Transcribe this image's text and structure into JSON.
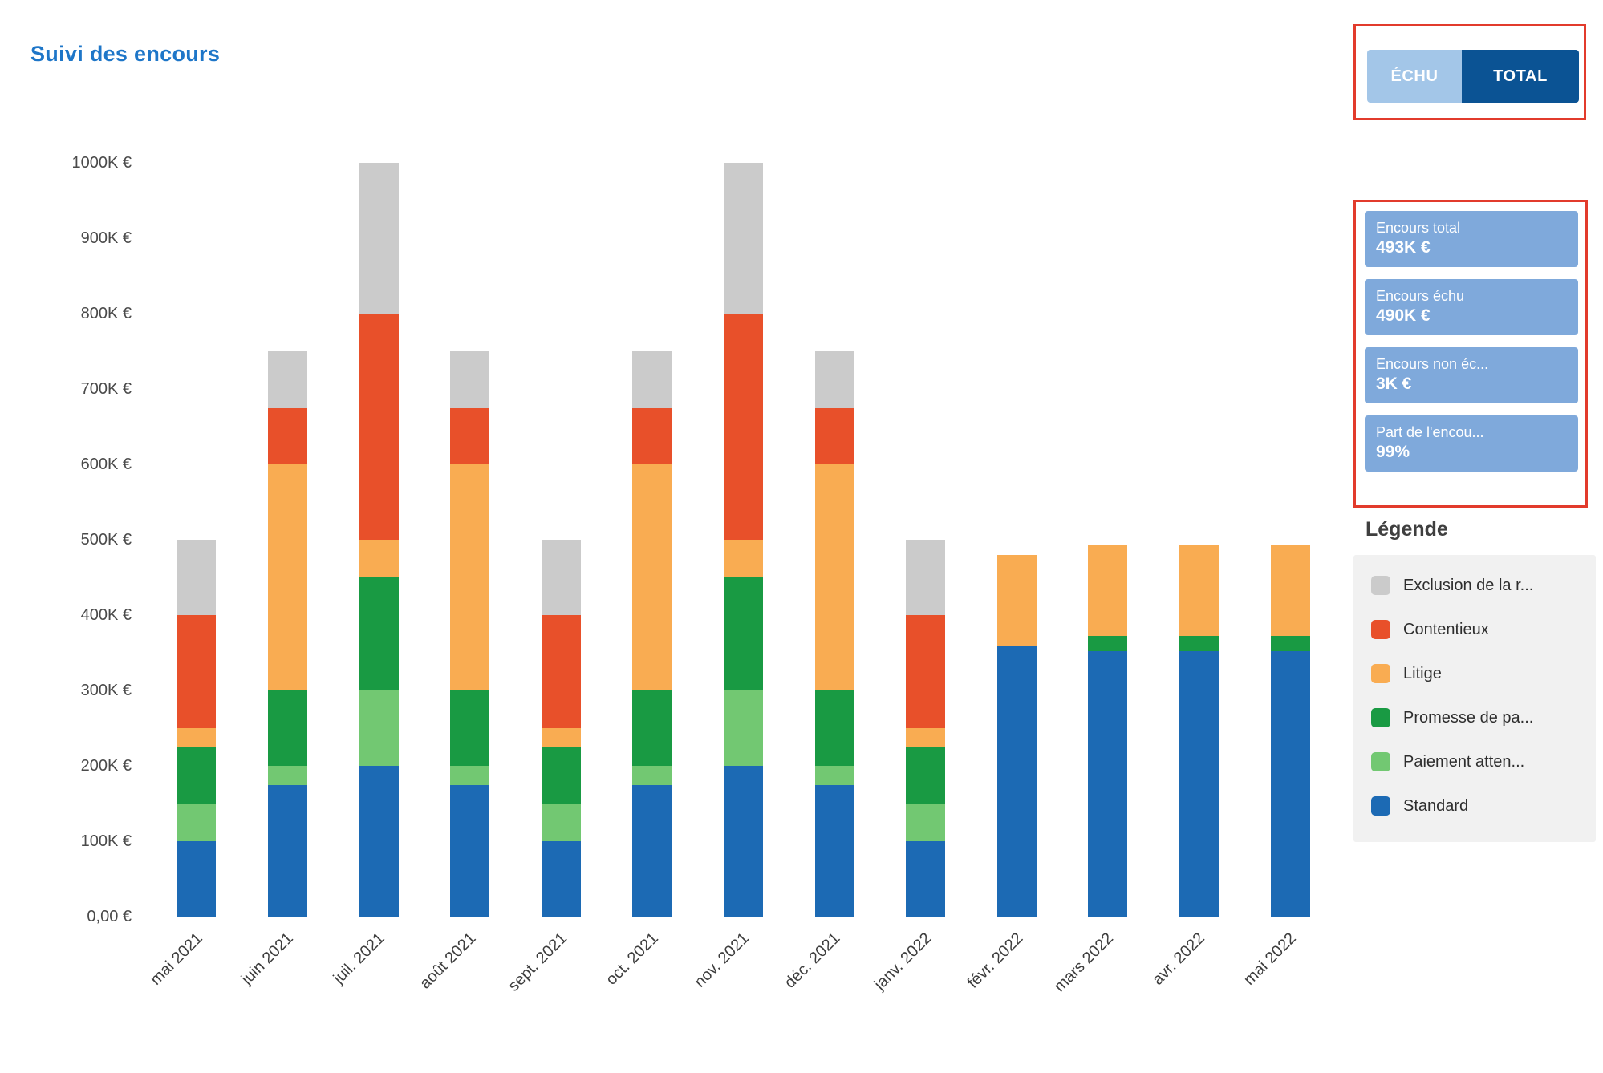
{
  "header": {
    "title": "Suivi des encours"
  },
  "toggle": {
    "options": [
      {
        "label": "ÉCHU",
        "active": false
      },
      {
        "label": "TOTAL",
        "active": true
      }
    ]
  },
  "kpis": [
    {
      "label": "Encours total",
      "value": "493K €"
    },
    {
      "label": "Encours échu",
      "value": "490K €"
    },
    {
      "label": "Encours non éc...",
      "value": "3K €"
    },
    {
      "label": "Part de l'encou...",
      "value": "99%"
    }
  ],
  "legend": {
    "title": "Légende",
    "items": [
      {
        "label": "Exclusion de la r...",
        "color": "#cbcbcb"
      },
      {
        "label": "Contentieux",
        "color": "#e8502a"
      },
      {
        "label": "Litige",
        "color": "#f9ac52"
      },
      {
        "label": "Promesse de pa...",
        "color": "#199a43"
      },
      {
        "label": "Paiement atten...",
        "color": "#72c872"
      },
      {
        "label": "Standard",
        "color": "#1c6ab4"
      }
    ]
  },
  "chart_data": {
    "type": "bar",
    "stacked": true,
    "title": "Suivi des encours",
    "unit": "K €",
    "ylim": [
      0,
      1000
    ],
    "grid": false,
    "legend_position": "right",
    "categories": [
      "mai 2021",
      "juin 2021",
      "juil. 2021",
      "août 2021",
      "sept. 2021",
      "oct. 2021",
      "nov. 2021",
      "déc. 2021",
      "janv. 2022",
      "févr. 2022",
      "mars 2022",
      "avr. 2022",
      "mai 2022"
    ],
    "series": [
      {
        "name": "Standard",
        "color": "#1c6ab4",
        "values": [
          100,
          175,
          200,
          175,
          100,
          175,
          200,
          175,
          100,
          360,
          352,
          352,
          352
        ]
      },
      {
        "name": "Paiement attendu",
        "color": "#72c872",
        "values": [
          50,
          25,
          100,
          25,
          50,
          25,
          100,
          25,
          50,
          0,
          0,
          0,
          0
        ]
      },
      {
        "name": "Promesse de paiement",
        "color": "#199a43",
        "values": [
          75,
          100,
          150,
          100,
          75,
          100,
          150,
          100,
          75,
          0,
          20,
          20,
          20
        ]
      },
      {
        "name": "Litige",
        "color": "#f9ac52",
        "values": [
          25,
          300,
          50,
          300,
          25,
          300,
          50,
          300,
          25,
          120,
          121,
          121,
          121
        ]
      },
      {
        "name": "Contentieux",
        "color": "#e8502a",
        "values": [
          150,
          75,
          300,
          75,
          150,
          75,
          300,
          75,
          150,
          0,
          0,
          0,
          0
        ]
      },
      {
        "name": "Exclusion de la relance",
        "color": "#cbcbcb",
        "values": [
          100,
          75,
          200,
          75,
          100,
          75,
          200,
          75,
          100,
          0,
          0,
          0,
          0
        ]
      }
    ],
    "y_ticks": [
      {
        "label": "0,00 €",
        "value": 0
      },
      {
        "label": "100K €",
        "value": 100
      },
      {
        "label": "200K €",
        "value": 200
      },
      {
        "label": "300K €",
        "value": 300
      },
      {
        "label": "400K €",
        "value": 400
      },
      {
        "label": "500K €",
        "value": 500
      },
      {
        "label": "600K €",
        "value": 600
      },
      {
        "label": "700K €",
        "value": 700
      },
      {
        "label": "800K €",
        "value": 800
      },
      {
        "label": "900K €",
        "value": 900
      },
      {
        "label": "1000K €",
        "value": 1000
      }
    ]
  }
}
